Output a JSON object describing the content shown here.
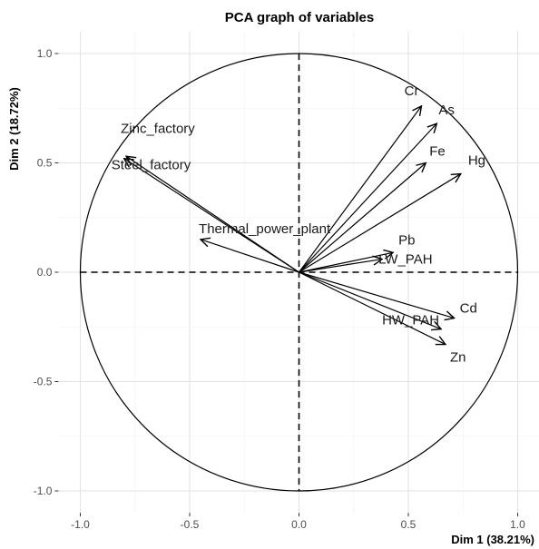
{
  "chart_data": {
    "type": "scatter",
    "title": "PCA graph of variables",
    "xlabel": "Dim 1 (38.21%)",
    "ylabel": "Dim 2 (18.72%)",
    "xlim": [
      -1.1,
      1.1
    ],
    "ylim": [
      -1.1,
      1.1
    ],
    "xticks": [
      -1.0,
      -0.5,
      0.0,
      0.5,
      1.0
    ],
    "yticks": [
      -1.0,
      -0.5,
      0.0,
      0.5,
      1.0
    ],
    "xtick_labels": [
      "-1.0",
      "-0.5",
      "0.0",
      "0.5",
      "1.0"
    ],
    "ytick_labels": [
      "-1.0",
      "-0.5",
      "0.0",
      "0.5",
      "1.0"
    ],
    "grid": true,
    "correlation_circle_radius": 1.0,
    "variables": [
      {
        "name": "Cr",
        "x": 0.56,
        "y": 0.76
      },
      {
        "name": "As",
        "x": 0.63,
        "y": 0.68
      },
      {
        "name": "Fe",
        "x": 0.58,
        "y": 0.5
      },
      {
        "name": "Hg",
        "x": 0.74,
        "y": 0.45
      },
      {
        "name": "Pb",
        "x": 0.43,
        "y": 0.09
      },
      {
        "name": "LW_PAH",
        "x": 0.38,
        "y": 0.06
      },
      {
        "name": "Cd",
        "x": 0.71,
        "y": -0.21
      },
      {
        "name": "HW_PAH",
        "x": 0.65,
        "y": -0.26
      },
      {
        "name": "Zn",
        "x": 0.67,
        "y": -0.33
      },
      {
        "name": "Zinc_factory",
        "x": -0.79,
        "y": 0.53
      },
      {
        "name": "Steel_factory",
        "x": -0.8,
        "y": 0.52
      },
      {
        "name": "Thermal_power_plant",
        "x": -0.45,
        "y": 0.15
      }
    ]
  }
}
